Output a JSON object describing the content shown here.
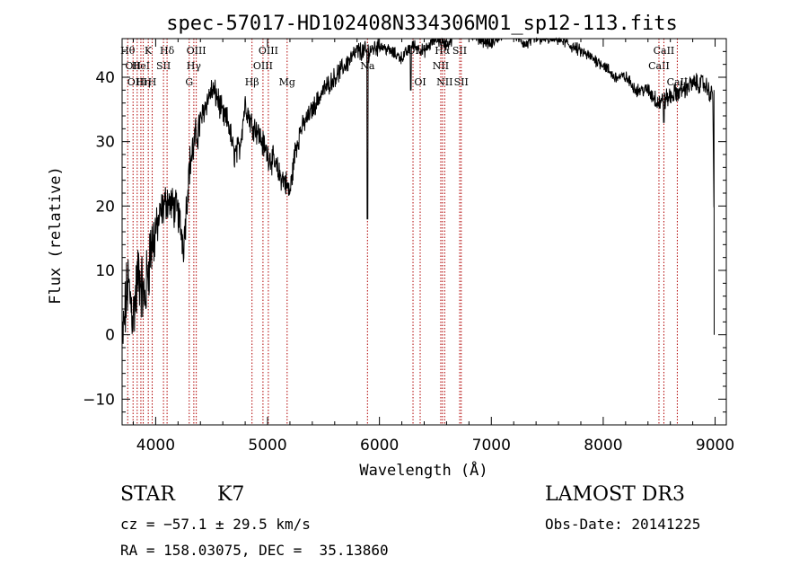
{
  "chart_data": {
    "type": "line",
    "title": "spec-57017-HD102408N334306M01_sp12-113.fits",
    "xlabel": "Wavelength (Å)",
    "ylabel": "Flux (relative)",
    "xlim": [
      3700,
      9100
    ],
    "ylim": [
      -14,
      46
    ],
    "xticks": [
      4000,
      5000,
      6000,
      7000,
      8000,
      9000
    ],
    "yticks": [
      -10,
      0,
      10,
      20,
      30,
      40
    ],
    "grid": false,
    "series": [
      {
        "x": [
          3700,
          3750,
          3800,
          3850,
          3900,
          3950,
          4000,
          4050,
          4100,
          4150,
          4200,
          4250,
          4300,
          4350,
          4400,
          4450,
          4500,
          4550,
          4600,
          4650,
          4700,
          4750,
          4800,
          4850,
          4900,
          4950,
          5000,
          5050,
          5100,
          5150,
          5200,
          5250,
          5300,
          5400,
          5500,
          5600,
          5700,
          5800,
          5900,
          6000,
          6100,
          6200,
          6300,
          6400,
          6500,
          6600,
          6700,
          6800,
          6900,
          7000,
          7100,
          7200,
          7300,
          7400,
          7500,
          7600,
          7700,
          7800,
          7900,
          8000,
          8100,
          8200,
          8300,
          8400,
          8500,
          8600,
          8700,
          8800,
          8900,
          8980,
          9000
        ],
        "values": [
          -2,
          8,
          3,
          10,
          5,
          13,
          16,
          19,
          21,
          20,
          19,
          14,
          26,
          30,
          33,
          36,
          38,
          37,
          34,
          33,
          28,
          29,
          36,
          33,
          32,
          30,
          28,
          27,
          25,
          24,
          22,
          29,
          32,
          35,
          38,
          40,
          42,
          44,
          44,
          45,
          44,
          43,
          45,
          44,
          46,
          45,
          47,
          47,
          46,
          45,
          47,
          47,
          45,
          46,
          46,
          46,
          45,
          44,
          43,
          42,
          40,
          40,
          38,
          38,
          36,
          37,
          38,
          39,
          39,
          37,
          0
        ]
      }
    ],
    "absorption_lines": [
      {
        "x": 3750,
        "label": "Hθ",
        "row": 0
      },
      {
        "x": 3798,
        "label": "OII",
        "row": 1
      },
      {
        "x": 3835,
        "label": "OIII",
        "row": 2
      },
      {
        "x": 3889,
        "label": "Hη",
        "row": 2
      },
      {
        "x": 3868,
        "label": "HeI",
        "row": 1
      },
      {
        "x": 3934,
        "label": "K",
        "row": 0
      },
      {
        "x": 3969,
        "label": "H",
        "row": 2
      },
      {
        "x": 4070,
        "label": "SII",
        "row": 1
      },
      {
        "x": 4102,
        "label": "Hδ",
        "row": 0
      },
      {
        "x": 4300,
        "label": "G",
        "row": 2
      },
      {
        "x": 4341,
        "label": "Hγ",
        "row": 1
      },
      {
        "x": 4363,
        "label": "OIII",
        "row": 0
      },
      {
        "x": 4861,
        "label": "Hβ",
        "row": 2
      },
      {
        "x": 4959,
        "label": "OIII",
        "row": 1
      },
      {
        "x": 5007,
        "label": "OIII",
        "row": 0
      },
      {
        "x": 5175,
        "label": "Mg",
        "row": 2
      },
      {
        "x": 5893,
        "label": "Na",
        "row": 1
      },
      {
        "x": 6300,
        "label": "OI",
        "row": 0
      },
      {
        "x": 6364,
        "label": "OI",
        "row": 2
      },
      {
        "x": 6548,
        "label": "NII",
        "row": 1
      },
      {
        "x": 6563,
        "label": "Hα",
        "row": 0
      },
      {
        "x": 6583,
        "label": "NII",
        "row": 2
      },
      {
        "x": 6717,
        "label": "SII",
        "row": 0
      },
      {
        "x": 6731,
        "label": "SII",
        "row": 2
      },
      {
        "x": 8498,
        "label": "CaII",
        "row": 1
      },
      {
        "x": 8542,
        "label": "CaII",
        "row": 0
      },
      {
        "x": 8662,
        "label": "CaII",
        "row": 2
      }
    ],
    "colors": {
      "spectrum": "#000000",
      "lines": "#b00000"
    }
  },
  "info": {
    "class_label": "STAR",
    "subclass": "K7",
    "survey": "LAMOST DR3",
    "cz": "cz = −57.1 ± 29.5 km/s",
    "obs_date": "Obs-Date: 20141225",
    "coords": "RA = 158.03075, DEC =  35.13860"
  }
}
